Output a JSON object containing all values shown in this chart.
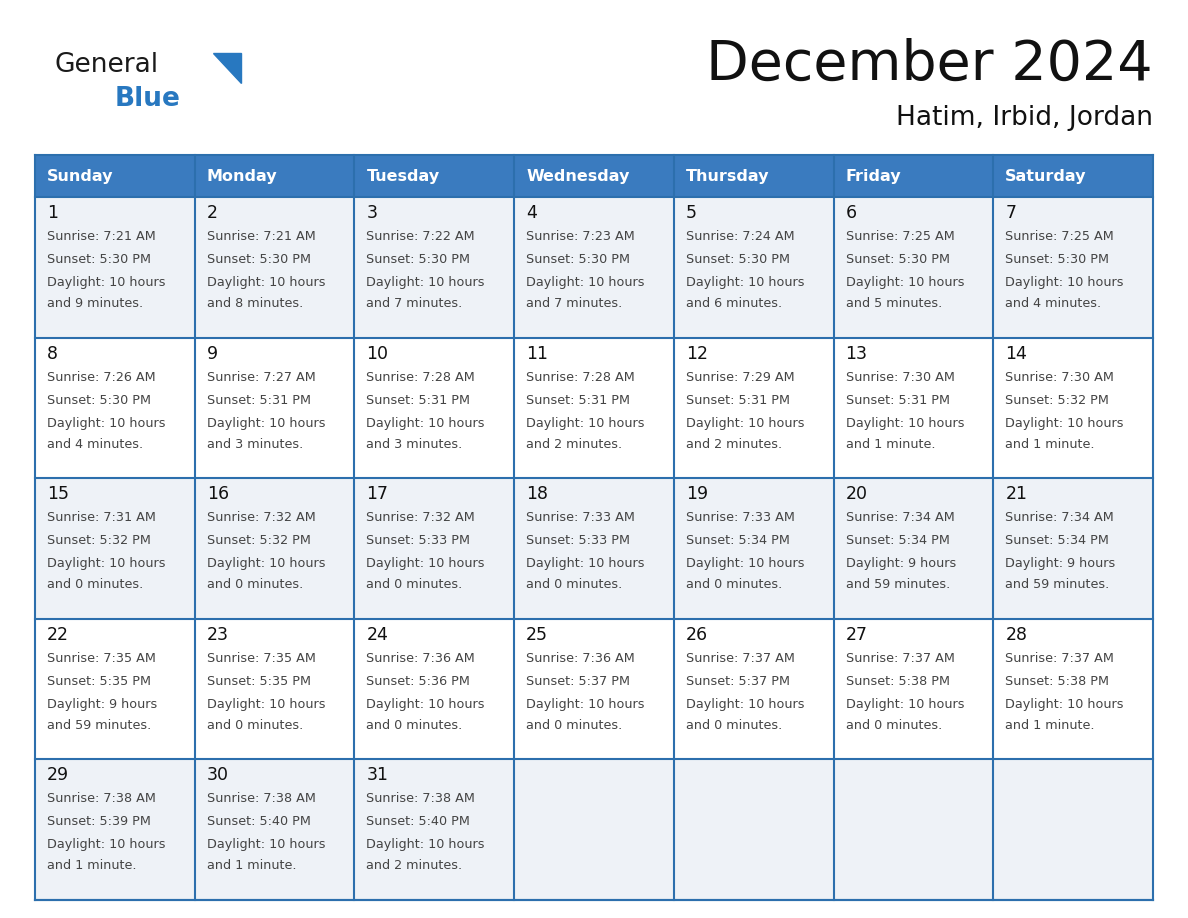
{
  "title": "December 2024",
  "subtitle": "Hatim, Irbid, Jordan",
  "days_of_week": [
    "Sunday",
    "Monday",
    "Tuesday",
    "Wednesday",
    "Thursday",
    "Friday",
    "Saturday"
  ],
  "header_bg": "#3a7bbf",
  "header_text": "#ffffff",
  "row_bg_odd": "#eef2f7",
  "row_bg_even": "#ffffff",
  "border_color": "#2c6fad",
  "text_color": "#444444",
  "day_num_color": "#111111",
  "logo_general_color": "#1a1a1a",
  "logo_blue_color": "#2878c0",
  "calendar_data": [
    [
      {
        "day": 1,
        "sunrise": "7:21 AM",
        "sunset": "5:30 PM",
        "daylight_line1": "Daylight: 10 hours",
        "daylight_line2": "and 9 minutes."
      },
      {
        "day": 2,
        "sunrise": "7:21 AM",
        "sunset": "5:30 PM",
        "daylight_line1": "Daylight: 10 hours",
        "daylight_line2": "and 8 minutes."
      },
      {
        "day": 3,
        "sunrise": "7:22 AM",
        "sunset": "5:30 PM",
        "daylight_line1": "Daylight: 10 hours",
        "daylight_line2": "and 7 minutes."
      },
      {
        "day": 4,
        "sunrise": "7:23 AM",
        "sunset": "5:30 PM",
        "daylight_line1": "Daylight: 10 hours",
        "daylight_line2": "and 7 minutes."
      },
      {
        "day": 5,
        "sunrise": "7:24 AM",
        "sunset": "5:30 PM",
        "daylight_line1": "Daylight: 10 hours",
        "daylight_line2": "and 6 minutes."
      },
      {
        "day": 6,
        "sunrise": "7:25 AM",
        "sunset": "5:30 PM",
        "daylight_line1": "Daylight: 10 hours",
        "daylight_line2": "and 5 minutes."
      },
      {
        "day": 7,
        "sunrise": "7:25 AM",
        "sunset": "5:30 PM",
        "daylight_line1": "Daylight: 10 hours",
        "daylight_line2": "and 4 minutes."
      }
    ],
    [
      {
        "day": 8,
        "sunrise": "7:26 AM",
        "sunset": "5:30 PM",
        "daylight_line1": "Daylight: 10 hours",
        "daylight_line2": "and 4 minutes."
      },
      {
        "day": 9,
        "sunrise": "7:27 AM",
        "sunset": "5:31 PM",
        "daylight_line1": "Daylight: 10 hours",
        "daylight_line2": "and 3 minutes."
      },
      {
        "day": 10,
        "sunrise": "7:28 AM",
        "sunset": "5:31 PM",
        "daylight_line1": "Daylight: 10 hours",
        "daylight_line2": "and 3 minutes."
      },
      {
        "day": 11,
        "sunrise": "7:28 AM",
        "sunset": "5:31 PM",
        "daylight_line1": "Daylight: 10 hours",
        "daylight_line2": "and 2 minutes."
      },
      {
        "day": 12,
        "sunrise": "7:29 AM",
        "sunset": "5:31 PM",
        "daylight_line1": "Daylight: 10 hours",
        "daylight_line2": "and 2 minutes."
      },
      {
        "day": 13,
        "sunrise": "7:30 AM",
        "sunset": "5:31 PM",
        "daylight_line1": "Daylight: 10 hours",
        "daylight_line2": "and 1 minute."
      },
      {
        "day": 14,
        "sunrise": "7:30 AM",
        "sunset": "5:32 PM",
        "daylight_line1": "Daylight: 10 hours",
        "daylight_line2": "and 1 minute."
      }
    ],
    [
      {
        "day": 15,
        "sunrise": "7:31 AM",
        "sunset": "5:32 PM",
        "daylight_line1": "Daylight: 10 hours",
        "daylight_line2": "and 0 minutes."
      },
      {
        "day": 16,
        "sunrise": "7:32 AM",
        "sunset": "5:32 PM",
        "daylight_line1": "Daylight: 10 hours",
        "daylight_line2": "and 0 minutes."
      },
      {
        "day": 17,
        "sunrise": "7:32 AM",
        "sunset": "5:33 PM",
        "daylight_line1": "Daylight: 10 hours",
        "daylight_line2": "and 0 minutes."
      },
      {
        "day": 18,
        "sunrise": "7:33 AM",
        "sunset": "5:33 PM",
        "daylight_line1": "Daylight: 10 hours",
        "daylight_line2": "and 0 minutes."
      },
      {
        "day": 19,
        "sunrise": "7:33 AM",
        "sunset": "5:34 PM",
        "daylight_line1": "Daylight: 10 hours",
        "daylight_line2": "and 0 minutes."
      },
      {
        "day": 20,
        "sunrise": "7:34 AM",
        "sunset": "5:34 PM",
        "daylight_line1": "Daylight: 9 hours",
        "daylight_line2": "and 59 minutes."
      },
      {
        "day": 21,
        "sunrise": "7:34 AM",
        "sunset": "5:34 PM",
        "daylight_line1": "Daylight: 9 hours",
        "daylight_line2": "and 59 minutes."
      }
    ],
    [
      {
        "day": 22,
        "sunrise": "7:35 AM",
        "sunset": "5:35 PM",
        "daylight_line1": "Daylight: 9 hours",
        "daylight_line2": "and 59 minutes."
      },
      {
        "day": 23,
        "sunrise": "7:35 AM",
        "sunset": "5:35 PM",
        "daylight_line1": "Daylight: 10 hours",
        "daylight_line2": "and 0 minutes."
      },
      {
        "day": 24,
        "sunrise": "7:36 AM",
        "sunset": "5:36 PM",
        "daylight_line1": "Daylight: 10 hours",
        "daylight_line2": "and 0 minutes."
      },
      {
        "day": 25,
        "sunrise": "7:36 AM",
        "sunset": "5:37 PM",
        "daylight_line1": "Daylight: 10 hours",
        "daylight_line2": "and 0 minutes."
      },
      {
        "day": 26,
        "sunrise": "7:37 AM",
        "sunset": "5:37 PM",
        "daylight_line1": "Daylight: 10 hours",
        "daylight_line2": "and 0 minutes."
      },
      {
        "day": 27,
        "sunrise": "7:37 AM",
        "sunset": "5:38 PM",
        "daylight_line1": "Daylight: 10 hours",
        "daylight_line2": "and 0 minutes."
      },
      {
        "day": 28,
        "sunrise": "7:37 AM",
        "sunset": "5:38 PM",
        "daylight_line1": "Daylight: 10 hours",
        "daylight_line2": "and 1 minute."
      }
    ],
    [
      {
        "day": 29,
        "sunrise": "7:38 AM",
        "sunset": "5:39 PM",
        "daylight_line1": "Daylight: 10 hours",
        "daylight_line2": "and 1 minute."
      },
      {
        "day": 30,
        "sunrise": "7:38 AM",
        "sunset": "5:40 PM",
        "daylight_line1": "Daylight: 10 hours",
        "daylight_line2": "and 1 minute."
      },
      {
        "day": 31,
        "sunrise": "7:38 AM",
        "sunset": "5:40 PM",
        "daylight_line1": "Daylight: 10 hours",
        "daylight_line2": "and 2 minutes."
      },
      null,
      null,
      null,
      null
    ]
  ],
  "fig_width": 11.88,
  "fig_height": 9.18,
  "dpi": 100
}
